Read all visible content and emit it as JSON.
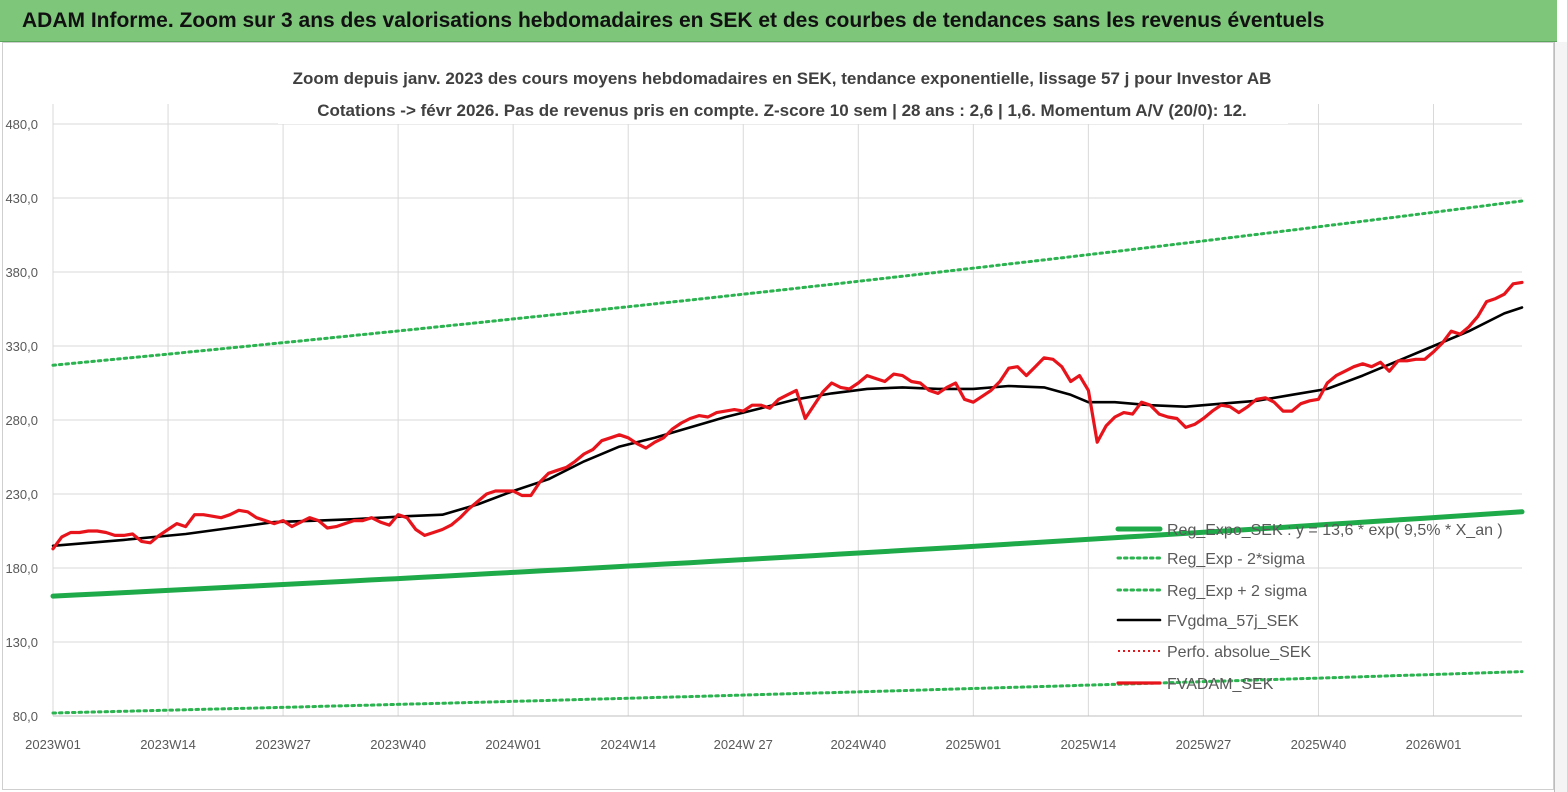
{
  "banner": {
    "title": "ADAM Informe. Zoom sur 3 ans des valorisations hebdomadaires en SEK et des courbes de tendances sans les revenus éventuels"
  },
  "colors": {
    "banner_bg": "#7dc67a",
    "trend": "#1faa4a",
    "band": "#2bb34f",
    "smooth": "#000000",
    "price": "#e8141c",
    "perfo": "#e8141c",
    "grid": "#d9d9d9"
  },
  "chart_data": {
    "type": "line",
    "title_line1": "Zoom depuis janv. 2023 des cours moyens hebdomadaires en SEK, tendance exponentielle, lissage 57 j pour Investor AB",
    "title_line2": "Cotations -> févr 2026.  Pas de revenus pris en compte. Z-score 10 sem  | 28 ans : 2,6  | 1,6. Momentum A/V (20/0): 12.",
    "x_tick_labels": [
      "2023W01",
      "2023W14",
      "2023W27",
      "2023W40",
      "2024W01",
      "2024W14",
      "2024W 27",
      "2024W40",
      "2025W01",
      "2025W14",
      "2025W27",
      "2025W40",
      "2026W01"
    ],
    "x_tick_weeks": [
      0,
      13,
      26,
      39,
      52,
      65,
      78,
      91,
      104,
      117,
      130,
      143,
      156
    ],
    "x_range_weeks": [
      0,
      166
    ],
    "y_ticks": [
      "80,0",
      "130,0",
      "180,0",
      "230,0",
      "280,0",
      "330,0",
      "380,0",
      "430,0",
      "480,0"
    ],
    "ylim": [
      80,
      480
    ],
    "grid": true,
    "legend_position": "bottom-right",
    "series": [
      {
        "name": "Reg_Expo_SEK : y = 13,6 * exp( 9,5% *  X_an )",
        "style": "thick-solid",
        "color": "#1faa4a",
        "endpoints_weeks": [
          0,
          166
        ],
        "values": [
          161,
          218
        ]
      },
      {
        "name": "Reg_Exp - 2*sigma",
        "style": "dotted",
        "color": "#2bb34f",
        "endpoints_weeks": [
          0,
          166
        ],
        "values": [
          82,
          110
        ]
      },
      {
        "name": "Reg_Exp + 2 sigma",
        "style": "dotted",
        "color": "#2bb34f",
        "endpoints_weeks": [
          0,
          166
        ],
        "values": [
          317,
          428
        ]
      },
      {
        "name": "FVgdma_57j_SEK",
        "style": "solid",
        "color": "#000000",
        "points": [
          [
            0,
            195
          ],
          [
            8,
            199
          ],
          [
            15,
            203
          ],
          [
            20,
            207
          ],
          [
            25,
            211
          ],
          [
            30,
            212
          ],
          [
            34,
            213
          ],
          [
            40,
            215
          ],
          [
            44,
            216
          ],
          [
            48,
            223
          ],
          [
            52,
            232
          ],
          [
            56,
            240
          ],
          [
            60,
            252
          ],
          [
            64,
            262
          ],
          [
            68,
            268
          ],
          [
            72,
            275
          ],
          [
            76,
            282
          ],
          [
            80,
            288
          ],
          [
            84,
            294
          ],
          [
            88,
            298
          ],
          [
            92,
            301
          ],
          [
            96,
            302
          ],
          [
            100,
            301
          ],
          [
            104,
            301
          ],
          [
            108,
            303
          ],
          [
            112,
            302
          ],
          [
            115,
            297
          ],
          [
            117,
            292
          ],
          [
            120,
            292
          ],
          [
            124,
            290
          ],
          [
            128,
            289
          ],
          [
            132,
            291
          ],
          [
            136,
            293
          ],
          [
            140,
            297
          ],
          [
            144,
            301
          ],
          [
            148,
            310
          ],
          [
            152,
            320
          ],
          [
            156,
            330
          ],
          [
            160,
            340
          ],
          [
            164,
            352
          ],
          [
            166,
            356
          ]
        ]
      },
      {
        "name": "Perfo. absolue_SEK",
        "style": "dotted-red",
        "color": "#e8141c",
        "points": []
      },
      {
        "name": "FVADAM_SEK",
        "style": "thick-solid",
        "color": "#e8141c",
        "points": [
          [
            0,
            193
          ],
          [
            1,
            201
          ],
          [
            2,
            204
          ],
          [
            3,
            204
          ],
          [
            4,
            205
          ],
          [
            5,
            205
          ],
          [
            6,
            204
          ],
          [
            7,
            202
          ],
          [
            8,
            202
          ],
          [
            9,
            203
          ],
          [
            10,
            198
          ],
          [
            11,
            197
          ],
          [
            12,
            202
          ],
          [
            13,
            206
          ],
          [
            14,
            210
          ],
          [
            15,
            208
          ],
          [
            16,
            216
          ],
          [
            17,
            216
          ],
          [
            18,
            215
          ],
          [
            19,
            214
          ],
          [
            20,
            216
          ],
          [
            21,
            219
          ],
          [
            22,
            218
          ],
          [
            23,
            214
          ],
          [
            24,
            212
          ],
          [
            25,
            210
          ],
          [
            26,
            212
          ],
          [
            27,
            208
          ],
          [
            28,
            211
          ],
          [
            29,
            214
          ],
          [
            30,
            212
          ],
          [
            31,
            207
          ],
          [
            32,
            208
          ],
          [
            33,
            210
          ],
          [
            34,
            212
          ],
          [
            35,
            212
          ],
          [
            36,
            214
          ],
          [
            37,
            211
          ],
          [
            38,
            209
          ],
          [
            39,
            216
          ],
          [
            40,
            214
          ],
          [
            41,
            206
          ],
          [
            42,
            202
          ],
          [
            43,
            204
          ],
          [
            44,
            206
          ],
          [
            45,
            209
          ],
          [
            46,
            214
          ],
          [
            47,
            220
          ],
          [
            48,
            225
          ],
          [
            49,
            230
          ],
          [
            50,
            232
          ],
          [
            51,
            232
          ],
          [
            52,
            232
          ],
          [
            53,
            229
          ],
          [
            54,
            229
          ],
          [
            55,
            238
          ],
          [
            56,
            244
          ],
          [
            57,
            246
          ],
          [
            58,
            248
          ],
          [
            59,
            252
          ],
          [
            60,
            257
          ],
          [
            61,
            260
          ],
          [
            62,
            266
          ],
          [
            63,
            268
          ],
          [
            64,
            270
          ],
          [
            65,
            268
          ],
          [
            66,
            264
          ],
          [
            67,
            261
          ],
          [
            68,
            265
          ],
          [
            69,
            268
          ],
          [
            70,
            274
          ],
          [
            71,
            278
          ],
          [
            72,
            281
          ],
          [
            73,
            283
          ],
          [
            74,
            282
          ],
          [
            75,
            285
          ],
          [
            76,
            286
          ],
          [
            77,
            287
          ],
          [
            78,
            286
          ],
          [
            79,
            290
          ],
          [
            80,
            290
          ],
          [
            81,
            288
          ],
          [
            82,
            294
          ],
          [
            83,
            297
          ],
          [
            84,
            300
          ],
          [
            85,
            281
          ],
          [
            86,
            290
          ],
          [
            87,
            299
          ],
          [
            88,
            305
          ],
          [
            89,
            302
          ],
          [
            90,
            301
          ],
          [
            91,
            305
          ],
          [
            92,
            310
          ],
          [
            93,
            308
          ],
          [
            94,
            306
          ],
          [
            95,
            311
          ],
          [
            96,
            310
          ],
          [
            97,
            306
          ],
          [
            98,
            305
          ],
          [
            99,
            300
          ],
          [
            100,
            298
          ],
          [
            101,
            302
          ],
          [
            102,
            305
          ],
          [
            103,
            294
          ],
          [
            104,
            292
          ],
          [
            105,
            296
          ],
          [
            106,
            300
          ],
          [
            107,
            306
          ],
          [
            108,
            315
          ],
          [
            109,
            316
          ],
          [
            110,
            310
          ],
          [
            111,
            316
          ],
          [
            112,
            322
          ],
          [
            113,
            321
          ],
          [
            114,
            316
          ],
          [
            115,
            306
          ],
          [
            116,
            310
          ],
          [
            117,
            300
          ],
          [
            118,
            265
          ],
          [
            119,
            276
          ],
          [
            120,
            282
          ],
          [
            121,
            285
          ],
          [
            122,
            284
          ],
          [
            123,
            292
          ],
          [
            124,
            290
          ],
          [
            125,
            284
          ],
          [
            126,
            282
          ],
          [
            127,
            281
          ],
          [
            128,
            275
          ],
          [
            129,
            277
          ],
          [
            130,
            281
          ],
          [
            131,
            286
          ],
          [
            132,
            290
          ],
          [
            133,
            289
          ],
          [
            134,
            285
          ],
          [
            135,
            289
          ],
          [
            136,
            294
          ],
          [
            137,
            295
          ],
          [
            138,
            292
          ],
          [
            139,
            286
          ],
          [
            140,
            286
          ],
          [
            141,
            291
          ],
          [
            142,
            293
          ],
          [
            143,
            294
          ],
          [
            144,
            305
          ],
          [
            145,
            310
          ],
          [
            146,
            313
          ],
          [
            147,
            316
          ],
          [
            148,
            318
          ],
          [
            149,
            316
          ],
          [
            150,
            319
          ],
          [
            151,
            313
          ],
          [
            152,
            320
          ],
          [
            153,
            320
          ],
          [
            154,
            321
          ],
          [
            155,
            321
          ],
          [
            156,
            326
          ],
          [
            157,
            332
          ],
          [
            158,
            340
          ],
          [
            159,
            338
          ],
          [
            160,
            343
          ],
          [
            161,
            350
          ],
          [
            162,
            360
          ],
          [
            163,
            362
          ],
          [
            164,
            365
          ],
          [
            165,
            372
          ],
          [
            166,
            373
          ]
        ]
      }
    ]
  }
}
